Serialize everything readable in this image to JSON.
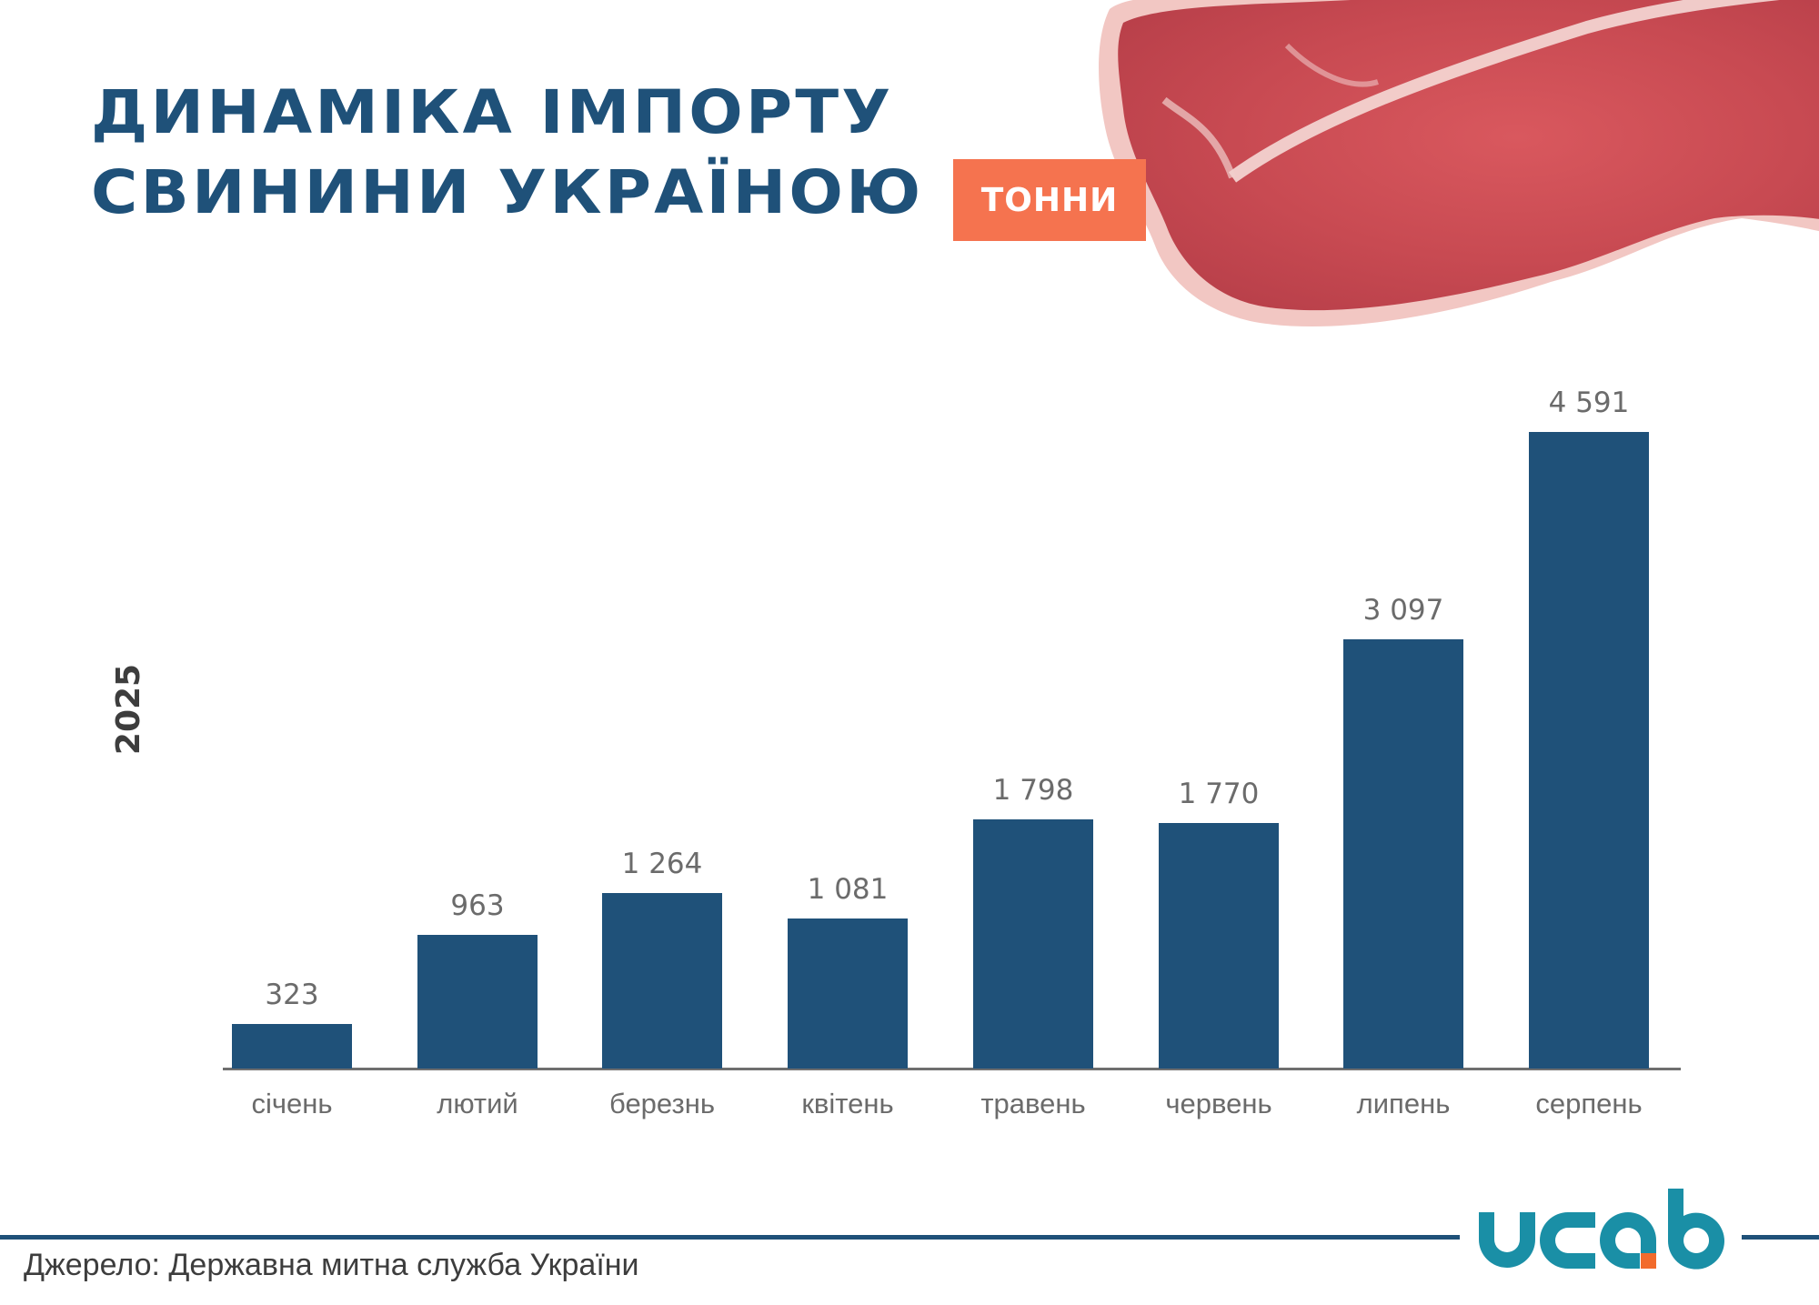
{
  "header": {
    "title_line1": "ДИНАМІКА ІМПОРТУ",
    "title_line2": "СВИНИНИ УКРАЇНОЮ",
    "unit_badge": "ТОННИ",
    "image_icon": "raw-pork-meat-photo"
  },
  "year_label": "2025",
  "colors": {
    "title": "#1F5179",
    "bar": "#1F5179",
    "badge": "#F5734F",
    "logo_teal": "#1A8FA6",
    "logo_accent": "#F26B2C",
    "footer_line": "#1F5179"
  },
  "chart_data": {
    "type": "bar",
    "title": "ДИНАМІКА ІМПОРТУ СВИНИНИ УКРАЇНОЮ",
    "subtitle": "ТОННИ",
    "xlabel": "",
    "ylabel": "2025",
    "categories": [
      "січень",
      "лютий",
      "березнь",
      "квітень",
      "травень",
      "червень",
      "липень",
      "серпень"
    ],
    "values": [
      323,
      963,
      1264,
      1081,
      1798,
      1770,
      3097,
      4591
    ],
    "value_labels": [
      "323",
      "963",
      "1 264",
      "1 081",
      "1 798",
      "1 770",
      "3 097",
      "4 591"
    ],
    "ylim": [
      0,
      4591
    ],
    "grid": false,
    "legend": null,
    "data_labels": true
  },
  "footer": {
    "source": "Джерело: Державна митна служба України",
    "logo_text": "ucab"
  }
}
